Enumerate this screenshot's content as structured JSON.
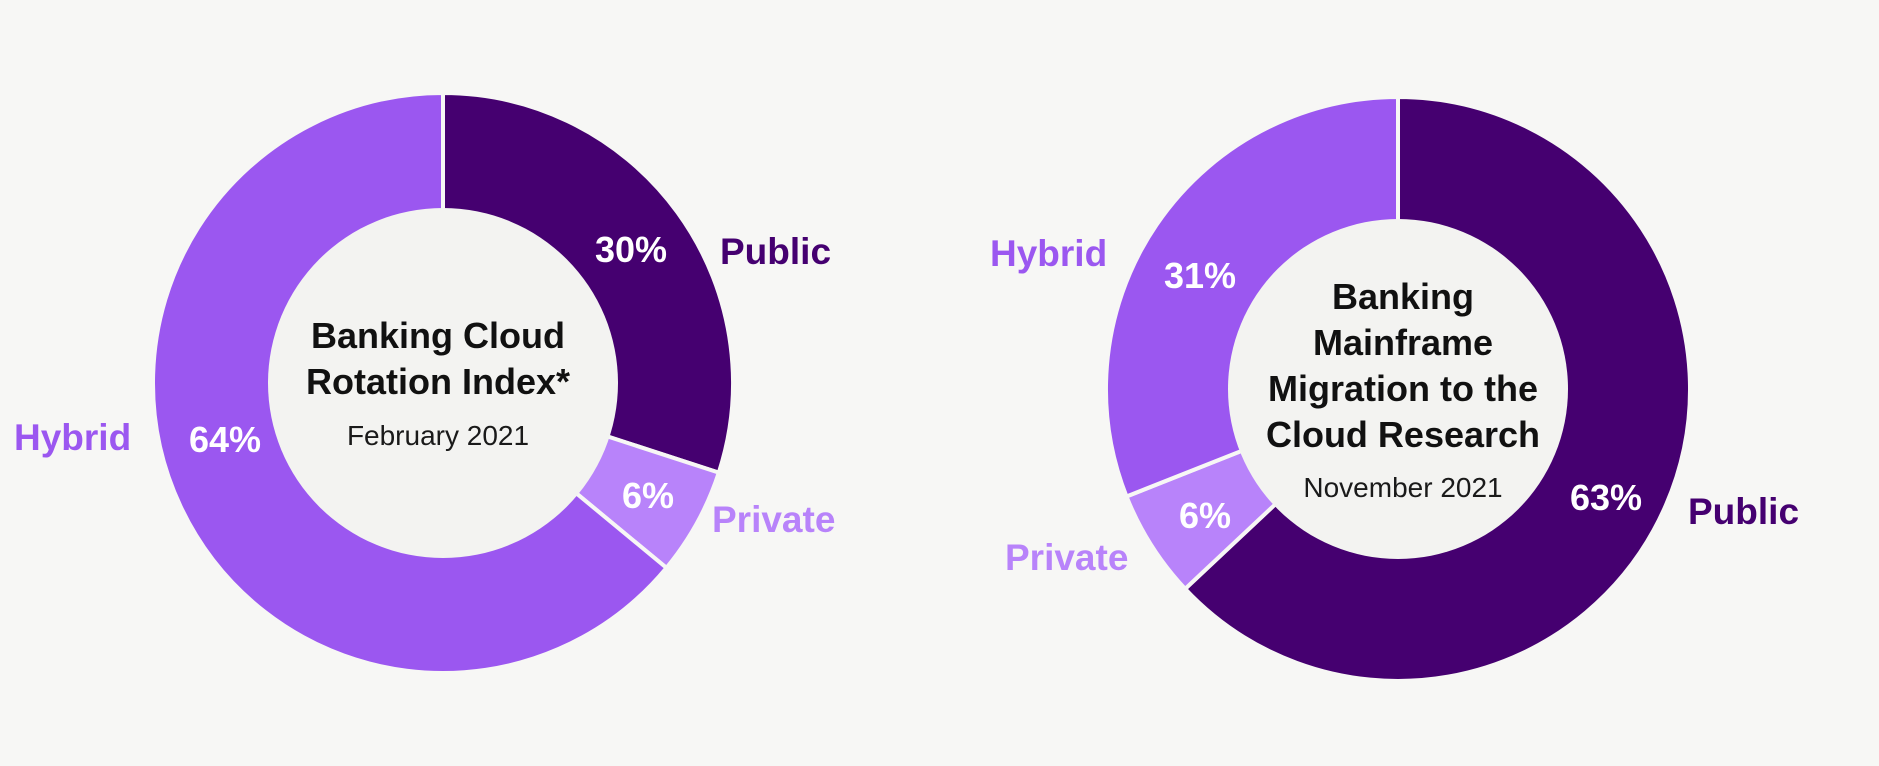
{
  "colors": {
    "background": "#f7f7f5",
    "hole": "#f3f3f1",
    "public": "#450070",
    "hybrid": "#9b57f0",
    "private": "#b883fa"
  },
  "chart_data": [
    {
      "type": "pie",
      "variant": "donut",
      "title_lines": [
        "Banking Cloud",
        "Rotation Index*"
      ],
      "subtitle": "February 2021",
      "series": [
        {
          "label": "Public",
          "value": 30,
          "value_label": "30%",
          "color": "#450070"
        },
        {
          "label": "Private",
          "value": 6,
          "value_label": "6%",
          "color": "#b883fa"
        },
        {
          "label": "Hybrid",
          "value": 64,
          "value_label": "64%",
          "color": "#9b57f0"
        }
      ],
      "legend": "category labels beside slices"
    },
    {
      "type": "pie",
      "variant": "donut",
      "title_lines": [
        "Banking",
        "Mainframe",
        "Migration to the",
        "Cloud Research"
      ],
      "subtitle": "November 2021",
      "series": [
        {
          "label": "Public",
          "value": 63,
          "value_label": "63%",
          "color": "#450070"
        },
        {
          "label": "Private",
          "value": 6,
          "value_label": "6%",
          "color": "#b883fa"
        },
        {
          "label": "Hybrid",
          "value": 31,
          "value_label": "31%",
          "color": "#9b57f0"
        }
      ],
      "legend": "category labels beside slices"
    }
  ]
}
